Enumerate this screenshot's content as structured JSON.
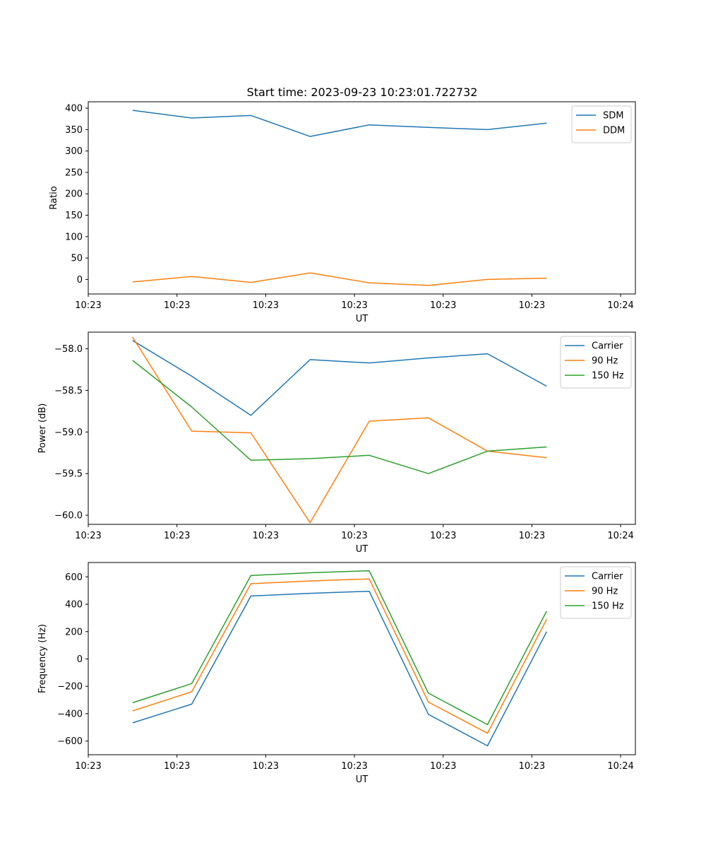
{
  "figure": {
    "title": "Start time: 2023-09-23 10:23:01.722732"
  },
  "chart_data": [
    {
      "type": "line",
      "xlabel": "UT",
      "ylabel": "Ratio",
      "x": [
        1,
        2,
        3,
        4,
        5,
        6,
        7,
        8
      ],
      "xlim": [
        0.25,
        9.5
      ],
      "xticks": [
        {
          "pos": 0.25,
          "label": "10:23"
        },
        {
          "pos": 1.75,
          "label": "10:23"
        },
        {
          "pos": 3.25,
          "label": "10:23"
        },
        {
          "pos": 4.75,
          "label": "10:23"
        },
        {
          "pos": 6.25,
          "label": "10:23"
        },
        {
          "pos": 7.75,
          "label": "10:23"
        },
        {
          "pos": 9.25,
          "label": "10:24"
        }
      ],
      "ylim": [
        -34,
        415
      ],
      "yticks": [
        {
          "v": 0,
          "label": "0"
        },
        {
          "v": 50,
          "label": "50"
        },
        {
          "v": 100,
          "label": "100"
        },
        {
          "v": 150,
          "label": "150"
        },
        {
          "v": 200,
          "label": "200"
        },
        {
          "v": 250,
          "label": "250"
        },
        {
          "v": 300,
          "label": "300"
        },
        {
          "v": 350,
          "label": "350"
        },
        {
          "v": 400,
          "label": "400"
        }
      ],
      "legend": "top-right",
      "series": [
        {
          "name": "SDM",
          "color": "#1f77b4",
          "values": [
            395,
            377,
            383,
            334,
            361,
            355,
            350,
            365
          ]
        },
        {
          "name": "DDM",
          "color": "#ff7f0e",
          "values": [
            -6,
            7,
            -7,
            15,
            -8,
            -14,
            0,
            3
          ]
        }
      ]
    },
    {
      "type": "line",
      "xlabel": "UT",
      "ylabel": "Power (dB)",
      "x": [
        1,
        2,
        3,
        4,
        5,
        6,
        7,
        8
      ],
      "xlim": [
        0.25,
        9.5
      ],
      "xticks": [
        {
          "pos": 0.25,
          "label": "10:23"
        },
        {
          "pos": 1.75,
          "label": "10:23"
        },
        {
          "pos": 3.25,
          "label": "10:23"
        },
        {
          "pos": 4.75,
          "label": "10:23"
        },
        {
          "pos": 6.25,
          "label": "10:23"
        },
        {
          "pos": 7.75,
          "label": "10:23"
        },
        {
          "pos": 9.25,
          "label": "10:24"
        }
      ],
      "ylim": [
        -60.11,
        -57.8
      ],
      "yticks": [
        {
          "v": -60.0,
          "label": "−60.0"
        },
        {
          "v": -59.5,
          "label": "−59.5"
        },
        {
          "v": -59.0,
          "label": "−59.0"
        },
        {
          "v": -58.5,
          "label": "−58.5"
        },
        {
          "v": -58.0,
          "label": "−58.0"
        }
      ],
      "legend": "top-right",
      "series": [
        {
          "name": "Carrier",
          "color": "#1f77b4",
          "values": [
            -57.9,
            -58.33,
            -58.8,
            -58.13,
            -58.17,
            -58.11,
            -58.06,
            -58.45
          ]
        },
        {
          "name": "90 Hz",
          "color": "#ff7f0e",
          "values": [
            -57.86,
            -58.99,
            -59.01,
            -60.09,
            -58.87,
            -58.83,
            -59.23,
            -59.31
          ]
        },
        {
          "name": "150 Hz",
          "color": "#2ca02c",
          "values": [
            -58.14,
            -58.7,
            -59.34,
            -59.32,
            -59.28,
            -59.5,
            -59.23,
            -59.18
          ]
        }
      ]
    },
    {
      "type": "line",
      "xlabel": "UT",
      "ylabel": "Frequency (Hz)",
      "x": [
        1,
        2,
        3,
        4,
        5,
        6,
        7,
        8
      ],
      "xlim": [
        0.25,
        9.5
      ],
      "xticks": [
        {
          "pos": 0.25,
          "label": "10:23"
        },
        {
          "pos": 1.75,
          "label": "10:23"
        },
        {
          "pos": 3.25,
          "label": "10:23"
        },
        {
          "pos": 4.75,
          "label": "10:23"
        },
        {
          "pos": 6.25,
          "label": "10:23"
        },
        {
          "pos": 7.75,
          "label": "10:23"
        },
        {
          "pos": 9.25,
          "label": "10:24"
        }
      ],
      "ylim": [
        -700,
        705
      ],
      "yticks": [
        {
          "v": -600,
          "label": "−600"
        },
        {
          "v": -400,
          "label": "−400"
        },
        {
          "v": -200,
          "label": "−200"
        },
        {
          "v": 0,
          "label": "0"
        },
        {
          "v": 200,
          "label": "200"
        },
        {
          "v": 400,
          "label": "400"
        },
        {
          "v": 600,
          "label": "600"
        }
      ],
      "legend": "top-right",
      "series": [
        {
          "name": "Carrier",
          "color": "#1f77b4",
          "values": [
            -467,
            -330,
            460,
            480,
            495,
            -405,
            -635,
            200
          ]
        },
        {
          "name": "90 Hz",
          "color": "#ff7f0e",
          "values": [
            -380,
            -240,
            550,
            570,
            585,
            -315,
            -543,
            290
          ]
        },
        {
          "name": "150 Hz",
          "color": "#2ca02c",
          "values": [
            -320,
            -180,
            610,
            630,
            645,
            -250,
            -480,
            350
          ]
        }
      ]
    }
  ]
}
